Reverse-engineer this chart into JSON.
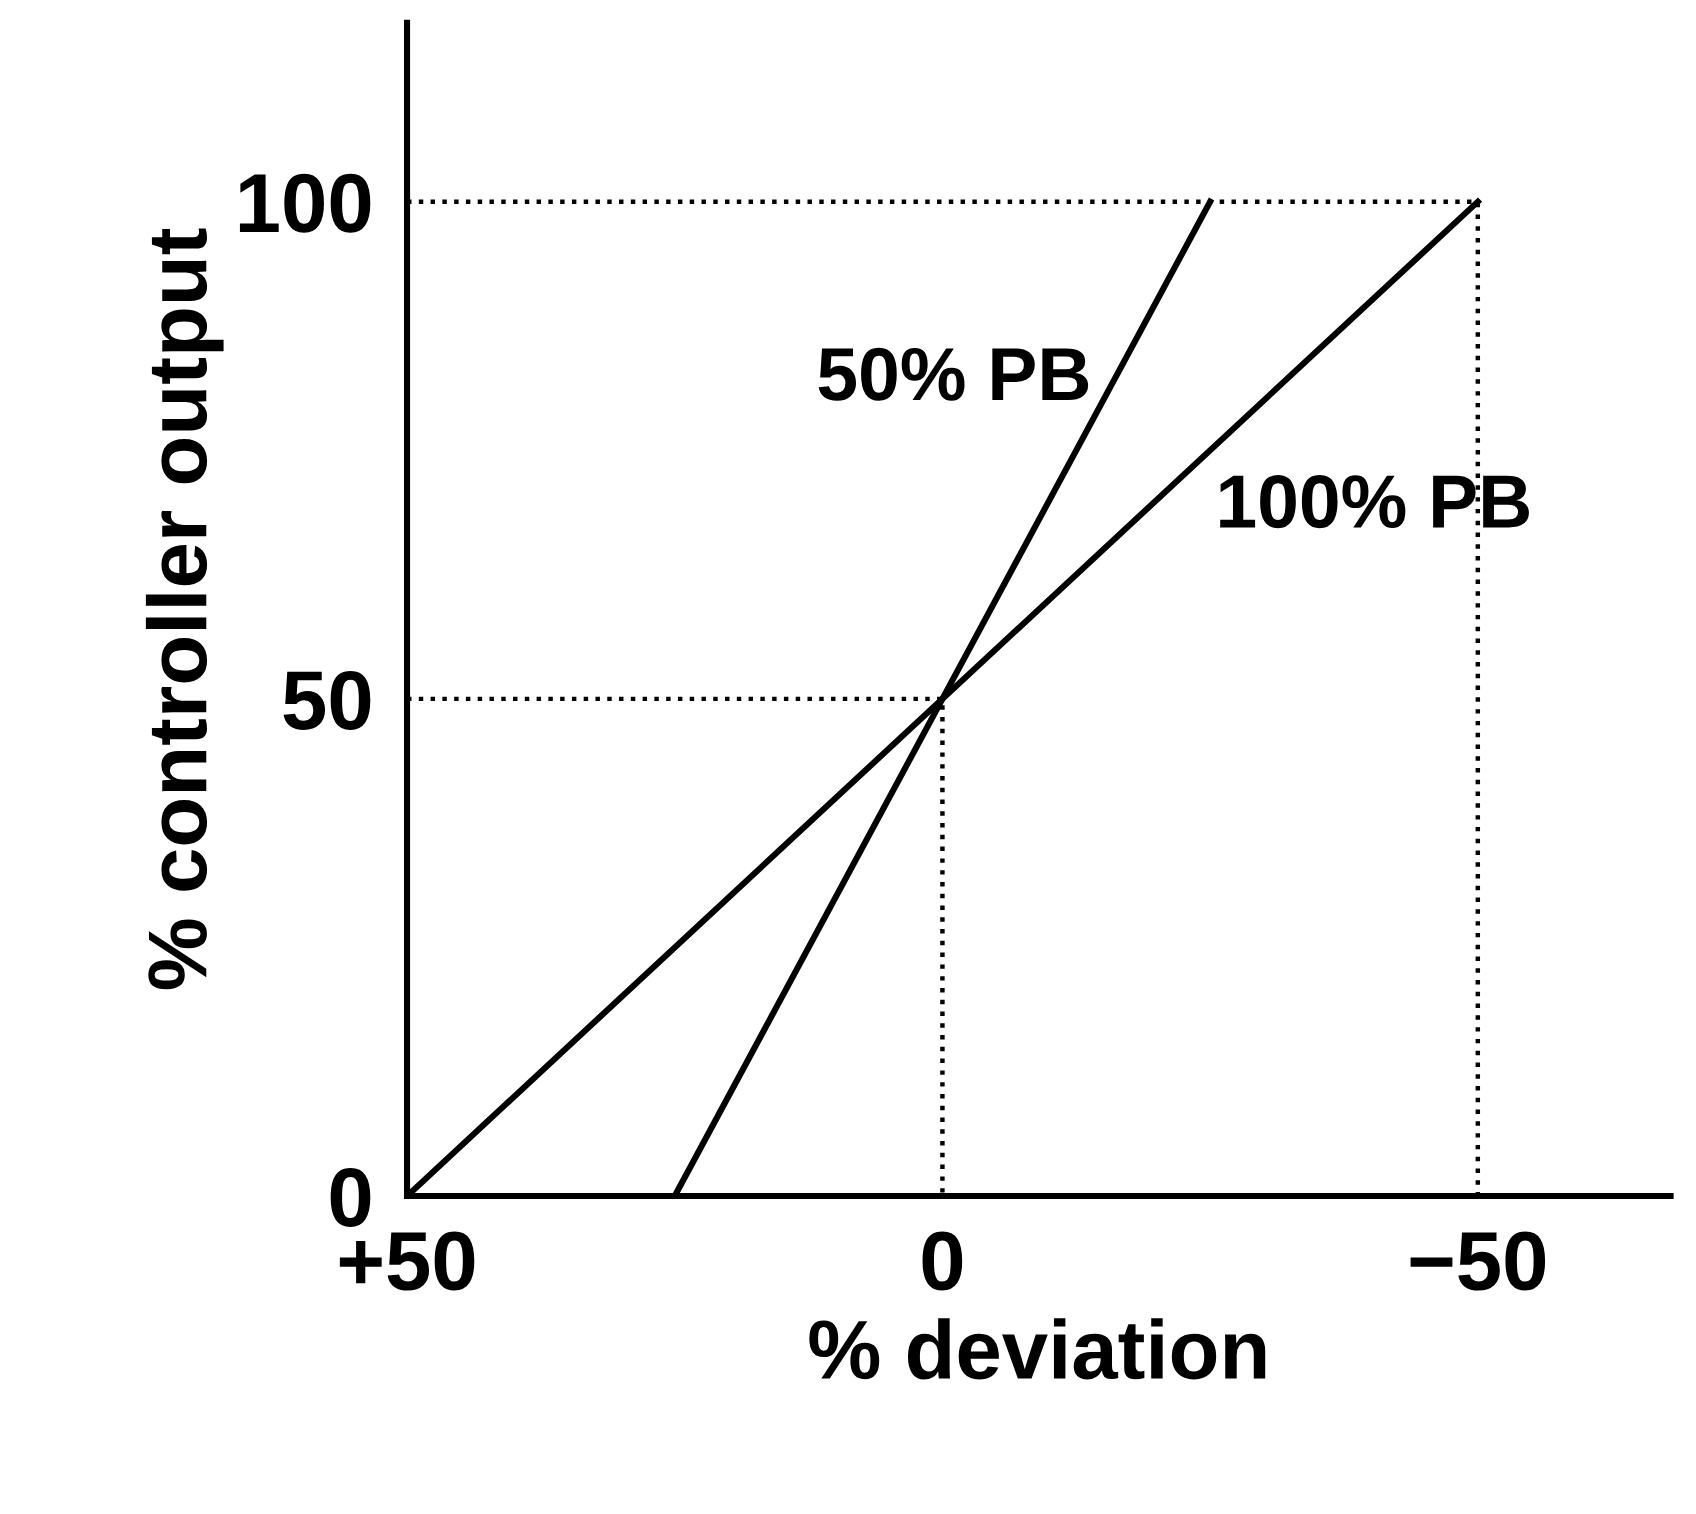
{
  "chart_data": {
    "type": "line",
    "xlabel": "% deviation",
    "ylabel": "% controller output",
    "xlim": [
      50,
      -68
    ],
    "ylim": [
      0,
      118
    ],
    "xticks": [
      {
        "value": 50,
        "label": "+50"
      },
      0,
      {
        "value": -50,
        "label": "−50"
      }
    ],
    "yticks": [
      0,
      50,
      100
    ],
    "grid": false,
    "legend": false,
    "marker": "none",
    "series": [
      {
        "name": "50% PB",
        "color": "#000000",
        "x": [
          25,
          -25
        ],
        "values": [
          0,
          100
        ],
        "line_style": "solid"
      },
      {
        "name": "100% PB",
        "color": "#000000",
        "x": [
          50,
          -50
        ],
        "values": [
          0,
          100
        ],
        "line_style": "solid"
      },
      {
        "color": "#000000",
        "x": [
          50,
          -50,
          -50
        ],
        "values": [
          100,
          100,
          0
        ],
        "line_style": "dotted"
      },
      {
        "color": "#000000",
        "x": [
          50,
          0,
          0
        ],
        "values": [
          50,
          50,
          0
        ],
        "line_style": "dotted"
      }
    ]
  }
}
